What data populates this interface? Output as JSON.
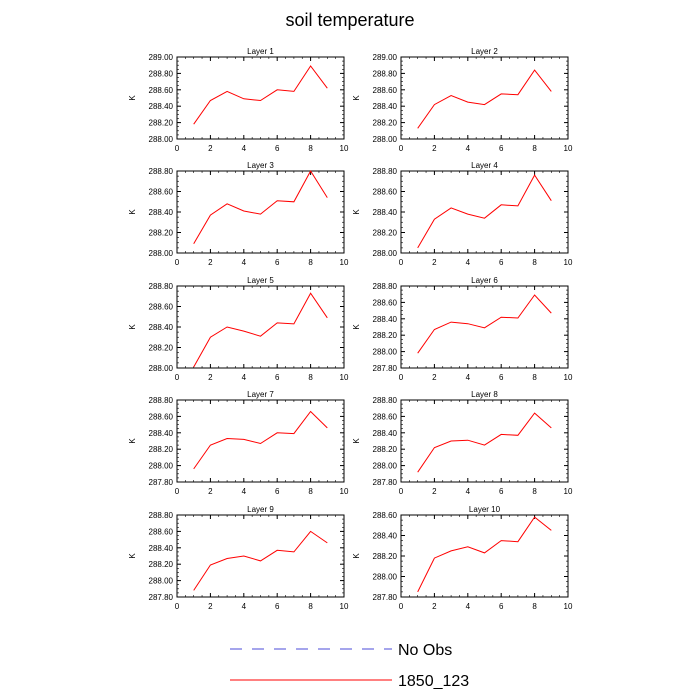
{
  "figure": {
    "title": "soil temperature",
    "legend": [
      {
        "label": "No Obs",
        "style": "dashed",
        "color": "#4b4bd8"
      },
      {
        "label": "1850_123",
        "style": "solid",
        "color": "#ff0000"
      }
    ]
  },
  "chart_data": [
    {
      "type": "line",
      "title": "Layer 1",
      "ylabel": "K",
      "xlim": [
        0,
        10
      ],
      "ylim": [
        288.0,
        289.0
      ],
      "xticks": [
        0,
        2,
        4,
        6,
        8,
        10
      ],
      "yticks": [
        "288.00",
        "288.20",
        "288.40",
        "288.60",
        "288.80",
        "289.00"
      ],
      "series": [
        {
          "name": "1850_123",
          "color": "#ff0000",
          "x": [
            1,
            2,
            3,
            4,
            5,
            6,
            7,
            8,
            9
          ],
          "values": [
            288.18,
            288.47,
            288.58,
            288.49,
            288.47,
            288.6,
            288.58,
            288.89,
            288.62
          ]
        }
      ]
    },
    {
      "type": "line",
      "title": "Layer 2",
      "ylabel": "K",
      "xlim": [
        0,
        10
      ],
      "ylim": [
        288.0,
        289.0
      ],
      "xticks": [
        0,
        2,
        4,
        6,
        8,
        10
      ],
      "yticks": [
        "288.00",
        "288.20",
        "288.40",
        "288.60",
        "288.80",
        "289.00"
      ],
      "series": [
        {
          "name": "1850_123",
          "color": "#ff0000",
          "x": [
            1,
            2,
            3,
            4,
            5,
            6,
            7,
            8,
            9
          ],
          "values": [
            288.13,
            288.42,
            288.53,
            288.45,
            288.42,
            288.55,
            288.54,
            288.84,
            288.58
          ]
        }
      ]
    },
    {
      "type": "line",
      "title": "Layer 3",
      "ylabel": "K",
      "xlim": [
        0,
        10
      ],
      "ylim": [
        288.0,
        288.8
      ],
      "xticks": [
        0,
        2,
        4,
        6,
        8,
        10
      ],
      "yticks": [
        "288.00",
        "288.20",
        "288.40",
        "288.60",
        "288.80"
      ],
      "series": [
        {
          "name": "1850_123",
          "color": "#ff0000",
          "x": [
            1,
            2,
            3,
            4,
            5,
            6,
            7,
            8,
            9
          ],
          "values": [
            288.09,
            288.37,
            288.48,
            288.41,
            288.38,
            288.51,
            288.5,
            288.8,
            288.54
          ]
        }
      ]
    },
    {
      "type": "line",
      "title": "Layer 4",
      "ylabel": "K",
      "xlim": [
        0,
        10
      ],
      "ylim": [
        288.0,
        288.8
      ],
      "xticks": [
        0,
        2,
        4,
        6,
        8,
        10
      ],
      "yticks": [
        "288.00",
        "288.20",
        "288.40",
        "288.60",
        "288.80"
      ],
      "series": [
        {
          "name": "1850_123",
          "color": "#ff0000",
          "x": [
            1,
            2,
            3,
            4,
            5,
            6,
            7,
            8,
            9
          ],
          "values": [
            288.05,
            288.33,
            288.44,
            288.38,
            288.34,
            288.47,
            288.46,
            288.76,
            288.51
          ]
        }
      ]
    },
    {
      "type": "line",
      "title": "Layer 5",
      "ylabel": "K",
      "xlim": [
        0,
        10
      ],
      "ylim": [
        288.0,
        288.8
      ],
      "xticks": [
        0,
        2,
        4,
        6,
        8,
        10
      ],
      "yticks": [
        "288.00",
        "288.20",
        "288.40",
        "288.60",
        "288.80"
      ],
      "series": [
        {
          "name": "1850_123",
          "color": "#ff0000",
          "x": [
            1,
            2,
            3,
            4,
            5,
            6,
            7,
            8,
            9
          ],
          "values": [
            288.01,
            288.3,
            288.4,
            288.36,
            288.31,
            288.44,
            288.43,
            288.73,
            288.49
          ]
        }
      ]
    },
    {
      "type": "line",
      "title": "Layer 6",
      "ylabel": "K",
      "xlim": [
        0,
        10
      ],
      "ylim": [
        287.8,
        288.8
      ],
      "xticks": [
        0,
        2,
        4,
        6,
        8,
        10
      ],
      "yticks": [
        "287.80",
        "288.00",
        "288.20",
        "288.40",
        "288.60",
        "288.80"
      ],
      "series": [
        {
          "name": "1850_123",
          "color": "#ff0000",
          "x": [
            1,
            2,
            3,
            4,
            5,
            6,
            7,
            8,
            9
          ],
          "values": [
            287.98,
            288.27,
            288.36,
            288.34,
            288.29,
            288.42,
            288.41,
            288.69,
            288.47
          ]
        }
      ]
    },
    {
      "type": "line",
      "title": "Layer 7",
      "ylabel": "K",
      "xlim": [
        0,
        10
      ],
      "ylim": [
        287.8,
        288.8
      ],
      "xticks": [
        0,
        2,
        4,
        6,
        8,
        10
      ],
      "yticks": [
        "287.80",
        "288.00",
        "288.20",
        "288.40",
        "288.60",
        "288.80"
      ],
      "series": [
        {
          "name": "1850_123",
          "color": "#ff0000",
          "x": [
            1,
            2,
            3,
            4,
            5,
            6,
            7,
            8,
            9
          ],
          "values": [
            287.96,
            288.25,
            288.33,
            288.32,
            288.27,
            288.4,
            288.39,
            288.66,
            288.46
          ]
        }
      ]
    },
    {
      "type": "line",
      "title": "Layer 8",
      "ylabel": "K",
      "xlim": [
        0,
        10
      ],
      "ylim": [
        287.8,
        288.8
      ],
      "xticks": [
        0,
        2,
        4,
        6,
        8,
        10
      ],
      "yticks": [
        "287.80",
        "288.00",
        "288.20",
        "288.40",
        "288.60",
        "288.80"
      ],
      "series": [
        {
          "name": "1850_123",
          "color": "#ff0000",
          "x": [
            1,
            2,
            3,
            4,
            5,
            6,
            7,
            8,
            9
          ],
          "values": [
            287.92,
            288.22,
            288.3,
            288.31,
            288.25,
            288.38,
            288.37,
            288.64,
            288.46
          ]
        }
      ]
    },
    {
      "type": "line",
      "title": "Layer 9",
      "ylabel": "K",
      "xlim": [
        0,
        10
      ],
      "ylim": [
        287.8,
        288.8
      ],
      "xticks": [
        0,
        2,
        4,
        6,
        8,
        10
      ],
      "yticks": [
        "287.80",
        "288.00",
        "288.20",
        "288.40",
        "288.60",
        "288.80"
      ],
      "series": [
        {
          "name": "1850_123",
          "color": "#ff0000",
          "x": [
            1,
            2,
            3,
            4,
            5,
            6,
            7,
            8,
            9
          ],
          "values": [
            287.88,
            288.19,
            288.27,
            288.3,
            288.24,
            288.37,
            288.35,
            288.6,
            288.46
          ]
        }
      ]
    },
    {
      "type": "line",
      "title": "Layer 10",
      "ylabel": "K",
      "xlim": [
        0,
        10
      ],
      "ylim": [
        287.8,
        288.6
      ],
      "xticks": [
        0,
        2,
        4,
        6,
        8,
        10
      ],
      "yticks": [
        "287.80",
        "288.00",
        "288.20",
        "288.40",
        "288.60"
      ],
      "series": [
        {
          "name": "1850_123",
          "color": "#ff0000",
          "x": [
            1,
            2,
            3,
            4,
            5,
            6,
            7,
            8,
            9
          ],
          "values": [
            287.85,
            288.18,
            288.25,
            288.29,
            288.23,
            288.35,
            288.34,
            288.58,
            288.45
          ]
        }
      ]
    }
  ]
}
